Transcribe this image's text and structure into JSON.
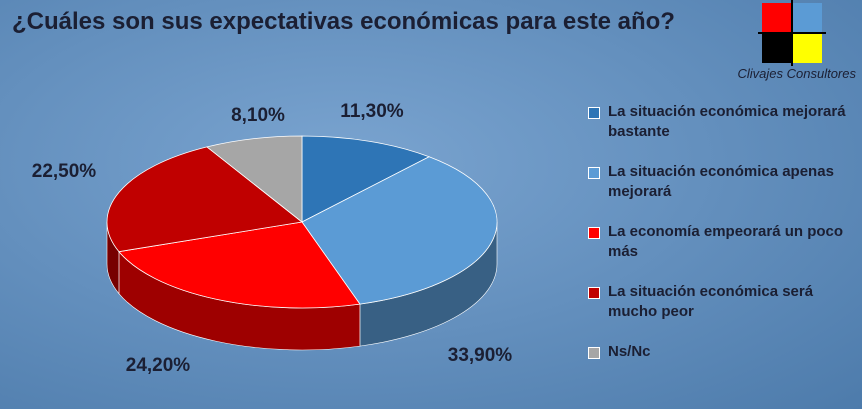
{
  "chart_data": {
    "type": "pie",
    "title": "¿Cuáles son sus expectativas económicas para este año?",
    "brand": "Clivajes Consultores",
    "categories": [
      "La situación económica mejorará bastante",
      "La situación económica apenas mejorará",
      "La economía empeorará un poco más",
      "La situación económica será mucho peor",
      "Ns/Nc"
    ],
    "values": [
      11.3,
      33.9,
      24.2,
      22.5,
      8.1
    ],
    "value_labels": [
      "11,30%",
      "33,90%",
      "24,20%",
      "22,50%",
      "8,10%"
    ],
    "colors": [
      "#2e75b6",
      "#5b9bd5",
      "#ff0000",
      "#c00000",
      "#a6a6a6"
    ],
    "legend": "right"
  }
}
